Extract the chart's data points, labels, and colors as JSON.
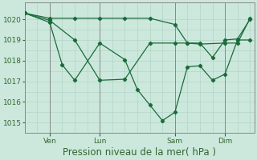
{
  "bg_color": "#cce8dc",
  "grid_color": "#aacfc0",
  "line_color": "#1a6b3a",
  "xlabel": "Pression niveau de la mer( hPa )",
  "xlabel_fontsize": 8.5,
  "ylim": [
    1014.5,
    1020.8
  ],
  "yticks": [
    1015,
    1016,
    1017,
    1018,
    1019,
    1020
  ],
  "ytick_fontsize": 6.5,
  "xtick_labels": [
    "Ven",
    "Lun",
    "Sam",
    "Dim"
  ],
  "xtick_positions": [
    12,
    36,
    72,
    96
  ],
  "xtick_fontsize": 6.5,
  "xlim": [
    0,
    110
  ],
  "vline_positions": [
    12,
    36,
    72,
    96
  ],
  "series1_x": [
    0,
    12,
    24,
    36,
    48,
    60,
    72,
    78,
    84,
    90,
    96,
    102,
    108
  ],
  "series1_y": [
    1020.3,
    1019.95,
    1019.0,
    1017.05,
    1017.1,
    1018.85,
    1018.85,
    1018.85,
    1018.85,
    1018.15,
    1019.0,
    1019.05,
    1020.0
  ],
  "series2_x": [
    0,
    12,
    24,
    36,
    48,
    60,
    72,
    78,
    84,
    96,
    102,
    108
  ],
  "series2_y": [
    1020.3,
    1020.05,
    1020.05,
    1020.05,
    1020.05,
    1020.05,
    1019.75,
    1018.85,
    1018.8,
    1018.85,
    1018.85,
    1020.05
  ],
  "series3_x": [
    0,
    12,
    18,
    24,
    36,
    48,
    54,
    60,
    66,
    72,
    78,
    84,
    90,
    96,
    102,
    108
  ],
  "series3_y": [
    1020.3,
    1019.85,
    1017.8,
    1017.05,
    1018.85,
    1018.05,
    1016.6,
    1015.85,
    1015.1,
    1015.5,
    1017.7,
    1017.75,
    1017.05,
    1017.35,
    1019.0,
    1019.0
  ],
  "vline_color": "#888888",
  "tick_color": "#336633",
  "spine_color": "#888888"
}
